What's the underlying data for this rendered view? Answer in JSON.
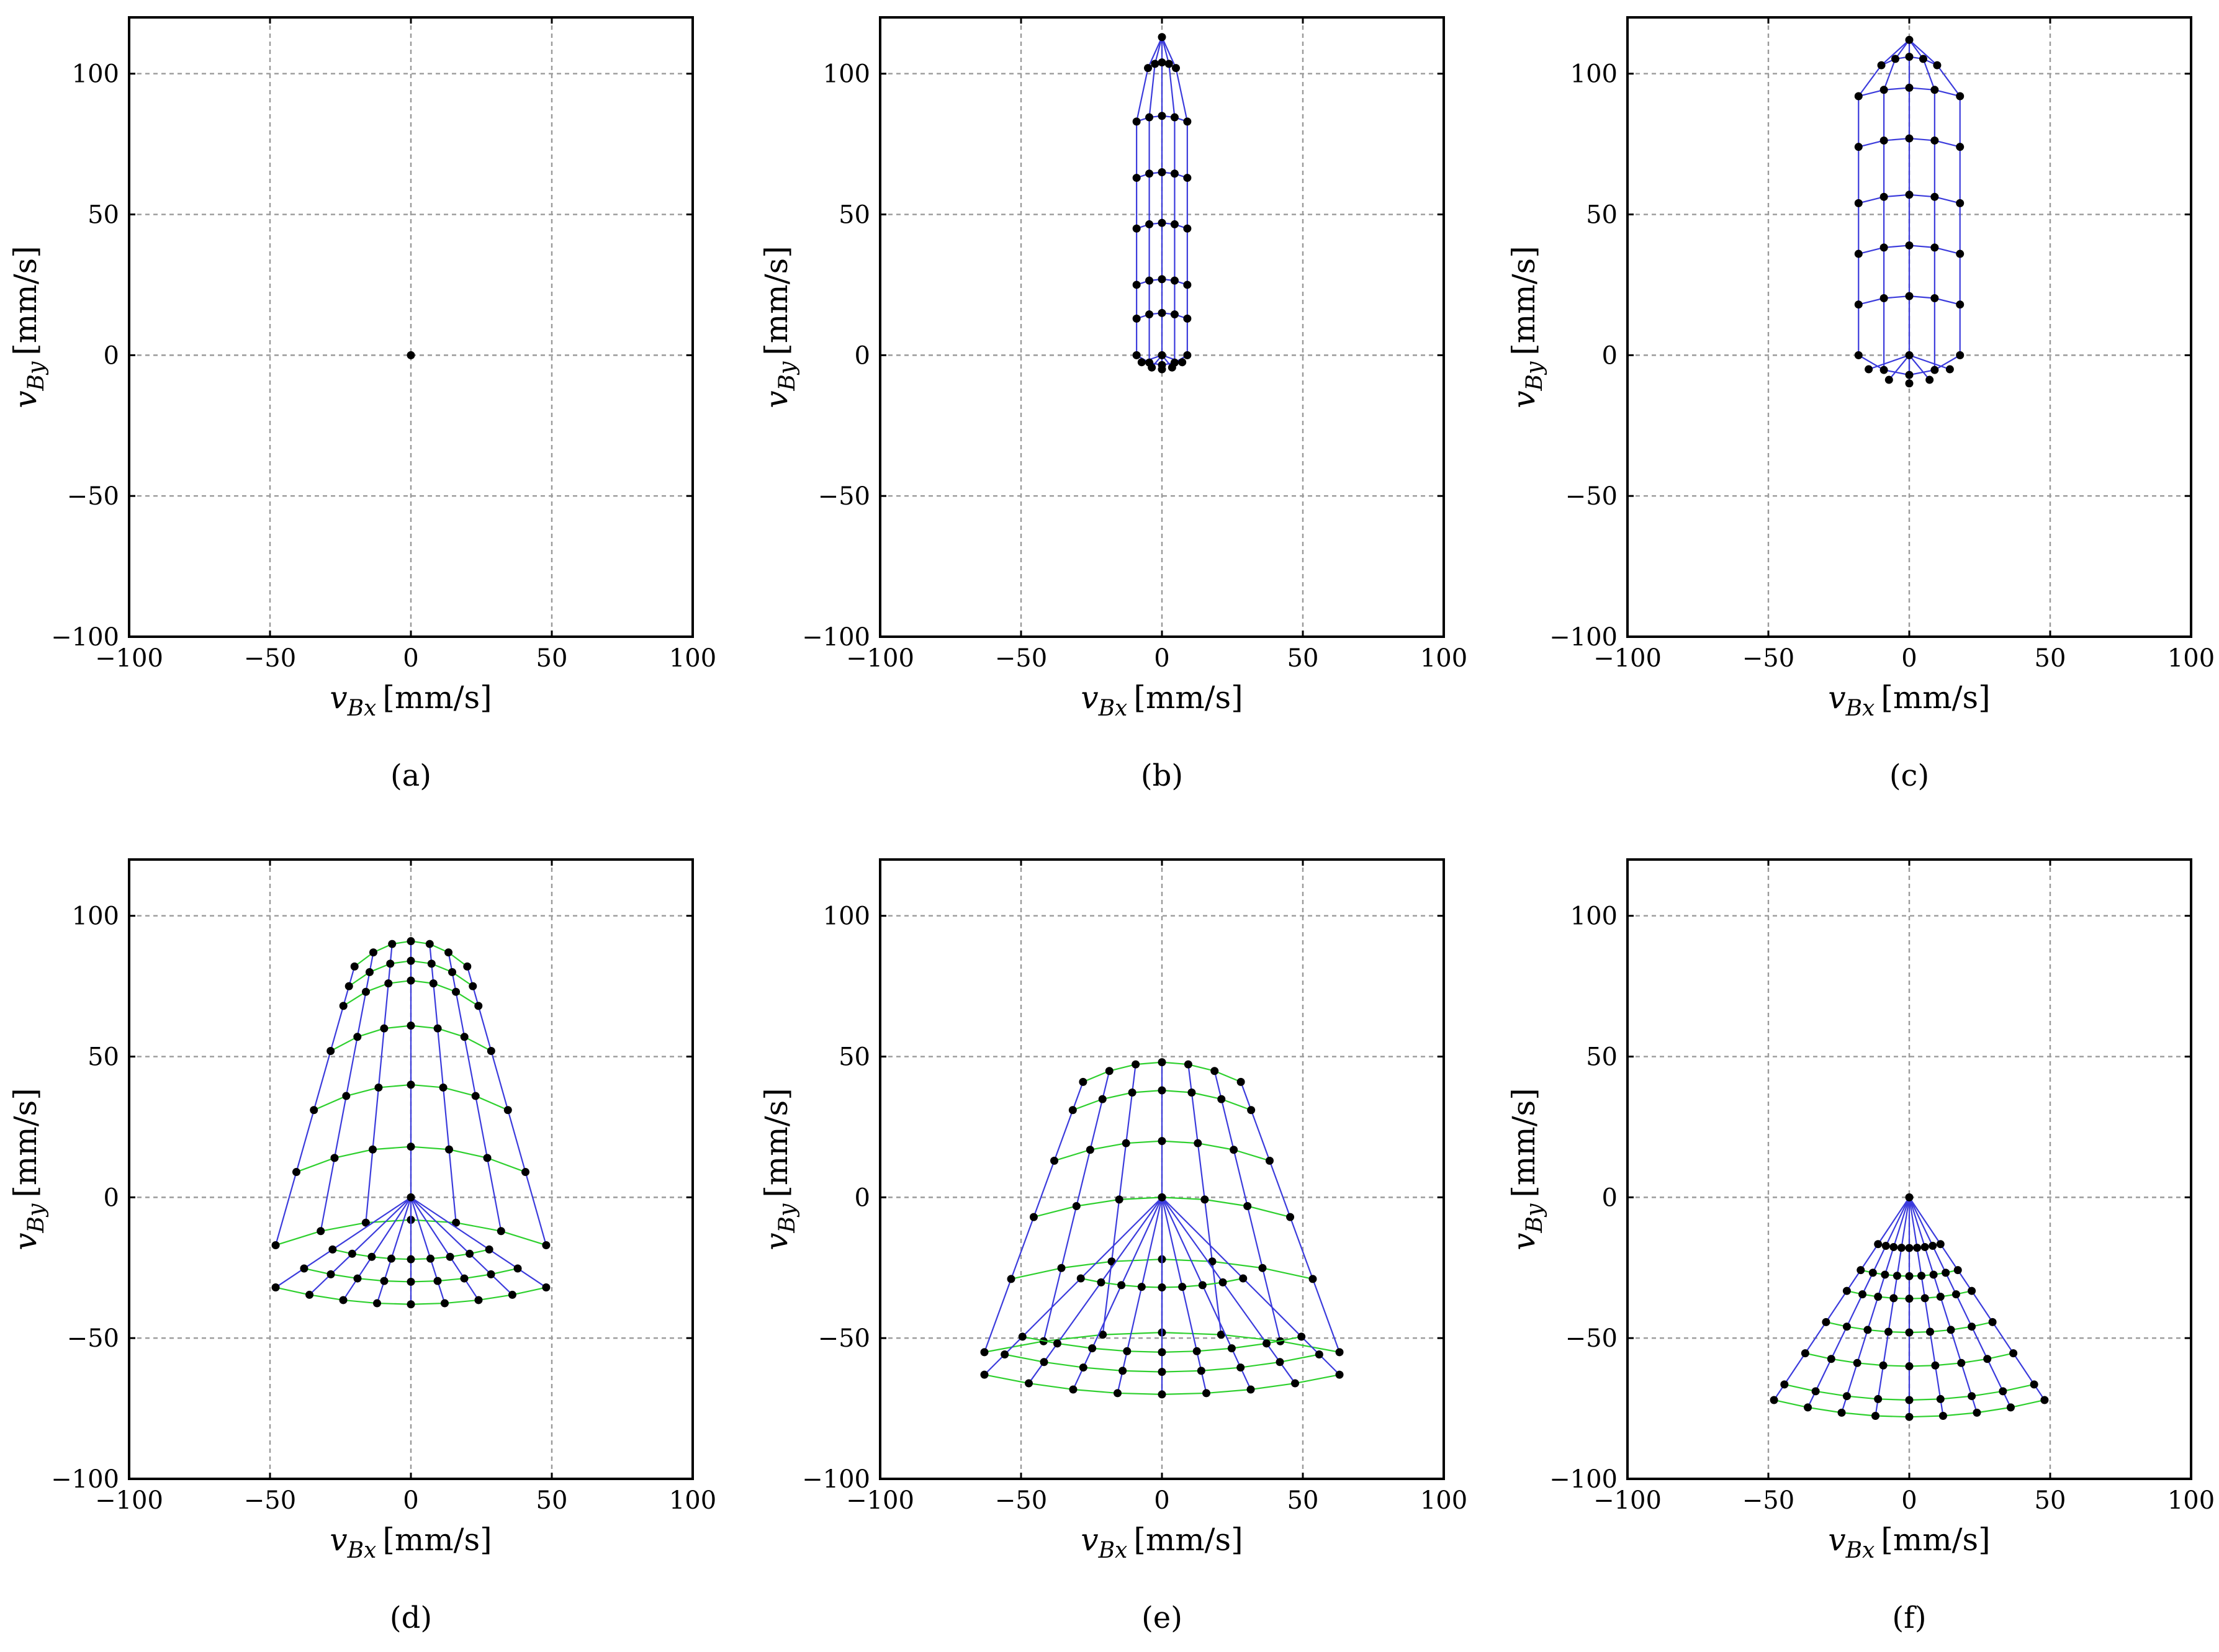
{
  "figure": {
    "xlabel_var": "v",
    "xlabel_sub": "Bx",
    "xlabel_unit": "[mm/s]",
    "ylabel_var": "v",
    "ylabel_sub": "By",
    "ylabel_unit": "[mm/s]",
    "colors": {
      "radial": "#3b3bdc",
      "arc": "#2ed02e",
      "point": "#000000",
      "grid": "#9a9a9a"
    }
  },
  "chart_data": [
    {
      "type": "scatter",
      "caption": "(a)",
      "xlim": [
        -100,
        100
      ],
      "ylim": [
        -100,
        120
      ],
      "xticks": [
        -100,
        -50,
        0,
        50,
        100
      ],
      "yticks": [
        -100,
        -50,
        0,
        50,
        100
      ],
      "xtick_labels": [
        "−100",
        "−50",
        "0",
        "50",
        "100"
      ],
      "ytick_labels": [
        "−100",
        "−50",
        "0",
        "50",
        "100"
      ],
      "grid": true,
      "points": [
        [
          0,
          0
        ]
      ]
    },
    {
      "type": "line",
      "caption": "(b)",
      "xlim": [
        -100,
        100
      ],
      "ylim": [
        -100,
        120
      ],
      "xticks": [
        -100,
        -50,
        0,
        50,
        100
      ],
      "yticks": [
        -100,
        -50,
        0,
        50,
        100
      ],
      "xtick_labels": [
        "−100",
        "−50",
        "0",
        "50",
        "100"
      ],
      "ytick_labels": [
        "−100",
        "−50",
        "0",
        "50",
        "100"
      ],
      "grid": true,
      "mesh": {
        "kind": "bulb",
        "half_width": 9,
        "y_bottom": 0,
        "y_top": 102,
        "levels": [
          0,
          13,
          25,
          45,
          63,
          83,
          102
        ],
        "columns": 5,
        "apex": [
          0,
          113
        ],
        "bottom_dip": 5,
        "arc_sag": 2
      }
    },
    {
      "type": "line",
      "caption": "(c)",
      "xlim": [
        -100,
        100
      ],
      "ylim": [
        -100,
        120
      ],
      "xticks": [
        -100,
        -50,
        0,
        50,
        100
      ],
      "yticks": [
        -100,
        -50,
        0,
        50,
        100
      ],
      "xtick_labels": [
        "−100",
        "−50",
        "0",
        "50",
        "100"
      ],
      "ytick_labels": [
        "−100",
        "−50",
        "0",
        "50",
        "100"
      ],
      "grid": true,
      "mesh": {
        "kind": "bulb",
        "half_width": 18,
        "y_bottom": 0,
        "y_top": 103,
        "levels": [
          0,
          18,
          36,
          54,
          74,
          92,
          103
        ],
        "columns": 5,
        "apex": [
          0,
          112
        ],
        "bottom_dip": 10,
        "arc_sag": 3
      }
    },
    {
      "type": "line",
      "caption": "(d)",
      "xlim": [
        -100,
        100
      ],
      "ylim": [
        -100,
        120
      ],
      "xticks": [
        -100,
        -50,
        0,
        50,
        100
      ],
      "yticks": [
        -100,
        -50,
        0,
        50,
        100
      ],
      "xtick_labels": [
        "−100",
        "−50",
        "0",
        "50",
        "100"
      ],
      "ytick_labels": [
        "−100",
        "−50",
        "0",
        "50",
        "100"
      ],
      "grid": true,
      "mesh": {
        "kind": "trapezoid",
        "top_half_width": 20,
        "bottom_half_width": 48,
        "y_top": 91,
        "y_bottom": -8,
        "levels": [
          91,
          84,
          77,
          61,
          40,
          18,
          -8
        ],
        "columns": 7,
        "arc_sag": 9
      },
      "fan": {
        "apex": [
          0,
          0
        ],
        "arc_levels": [
          -22,
          -30,
          -38
        ],
        "half_width_bottom": 48,
        "rays": 9,
        "arc_sag": 6
      }
    },
    {
      "type": "line",
      "caption": "(e)",
      "xlim": [
        -100,
        100
      ],
      "ylim": [
        -100,
        120
      ],
      "xticks": [
        -100,
        -50,
        0,
        50,
        100
      ],
      "yticks": [
        -100,
        -50,
        0,
        50,
        100
      ],
      "xtick_labels": [
        "−100",
        "−50",
        "0",
        "50",
        "100"
      ],
      "ytick_labels": [
        "−100",
        "−50",
        "0",
        "50",
        "100"
      ],
      "grid": true,
      "mesh": {
        "kind": "trapezoid",
        "top_half_width": 28,
        "bottom_half_width": 63,
        "y_top": 48,
        "y_bottom": -48,
        "levels": [
          48,
          38,
          20,
          0,
          -22,
          -48
        ],
        "columns": 7,
        "arc_sag": 7
      },
      "fan": {
        "apex": [
          0,
          0
        ],
        "arc_levels": [
          -32,
          -55,
          -62,
          -70
        ],
        "half_width_bottom": 63,
        "rays": 9,
        "arc_sag": 7
      }
    },
    {
      "type": "line",
      "caption": "(f)",
      "xlim": [
        -100,
        100
      ],
      "ylim": [
        -100,
        120
      ],
      "xticks": [
        -100,
        -50,
        0,
        50,
        100
      ],
      "yticks": [
        -100,
        -50,
        0,
        50,
        100
      ],
      "xtick_labels": [
        "−100",
        "−50",
        "0",
        "50",
        "100"
      ],
      "ytick_labels": [
        "−100",
        "−50",
        "0",
        "50",
        "100"
      ],
      "grid": true,
      "fan": {
        "apex": [
          0,
          0
        ],
        "arc_levels": [
          -18,
          -28,
          -36,
          -48,
          -60,
          -72,
          -78
        ],
        "half_width_bottom": 48,
        "rays": 9,
        "arc_sag": 6
      }
    }
  ]
}
